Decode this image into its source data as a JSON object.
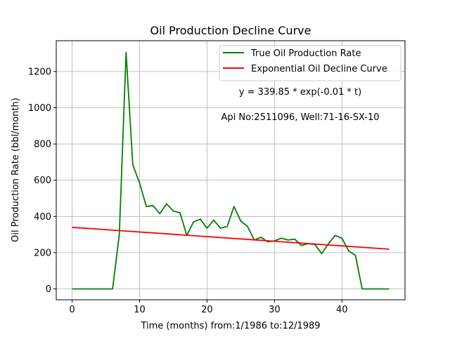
{
  "chart_data": {
    "type": "line",
    "title": "Oil Production Decline Curve",
    "xlabel": "Time (months) from:1/1986 to:12/1989",
    "ylabel": "Oil Production Rate (bbl/month)",
    "xlim": [
      -2.35,
      49.35
    ],
    "ylim": [
      -60,
      1370
    ],
    "xticks": [
      0,
      10,
      20,
      30,
      40
    ],
    "yticks": [
      0,
      200,
      400,
      600,
      800,
      1000,
      1200
    ],
    "grid": true,
    "legend_position": "top-right",
    "annotations": [
      "y = 339.85 * exp(-0.01 * t)",
      "Api No:2511096, Well:71-16-SX-10"
    ],
    "series": [
      {
        "name": "True Oil Production Rate",
        "color": "#008000",
        "x": [
          0,
          1,
          2,
          3,
          4,
          5,
          6,
          7,
          8,
          9,
          10,
          11,
          12,
          13,
          14,
          15,
          16,
          17,
          18,
          19,
          20,
          21,
          22,
          23,
          24,
          25,
          26,
          27,
          28,
          29,
          30,
          31,
          32,
          33,
          34,
          35,
          36,
          37,
          38,
          39,
          40,
          41,
          42,
          43,
          44,
          45,
          46,
          47
        ],
        "y": [
          0,
          0,
          0,
          0,
          0,
          0,
          0,
          300,
          1305,
          685,
          585,
          455,
          460,
          415,
          470,
          430,
          420,
          295,
          370,
          385,
          335,
          380,
          335,
          345,
          455,
          375,
          345,
          270,
          285,
          260,
          265,
          280,
          270,
          275,
          240,
          250,
          245,
          195,
          250,
          295,
          280,
          210,
          185,
          0,
          0,
          0,
          0,
          0
        ]
      },
      {
        "name": "Exponential Oil Decline Curve",
        "color": "#ff0000",
        "fit": {
          "a": 339.85,
          "b": -0.0093
        },
        "x": [
          0,
          47
        ],
        "y": [
          339.85,
          219.5
        ]
      }
    ]
  }
}
